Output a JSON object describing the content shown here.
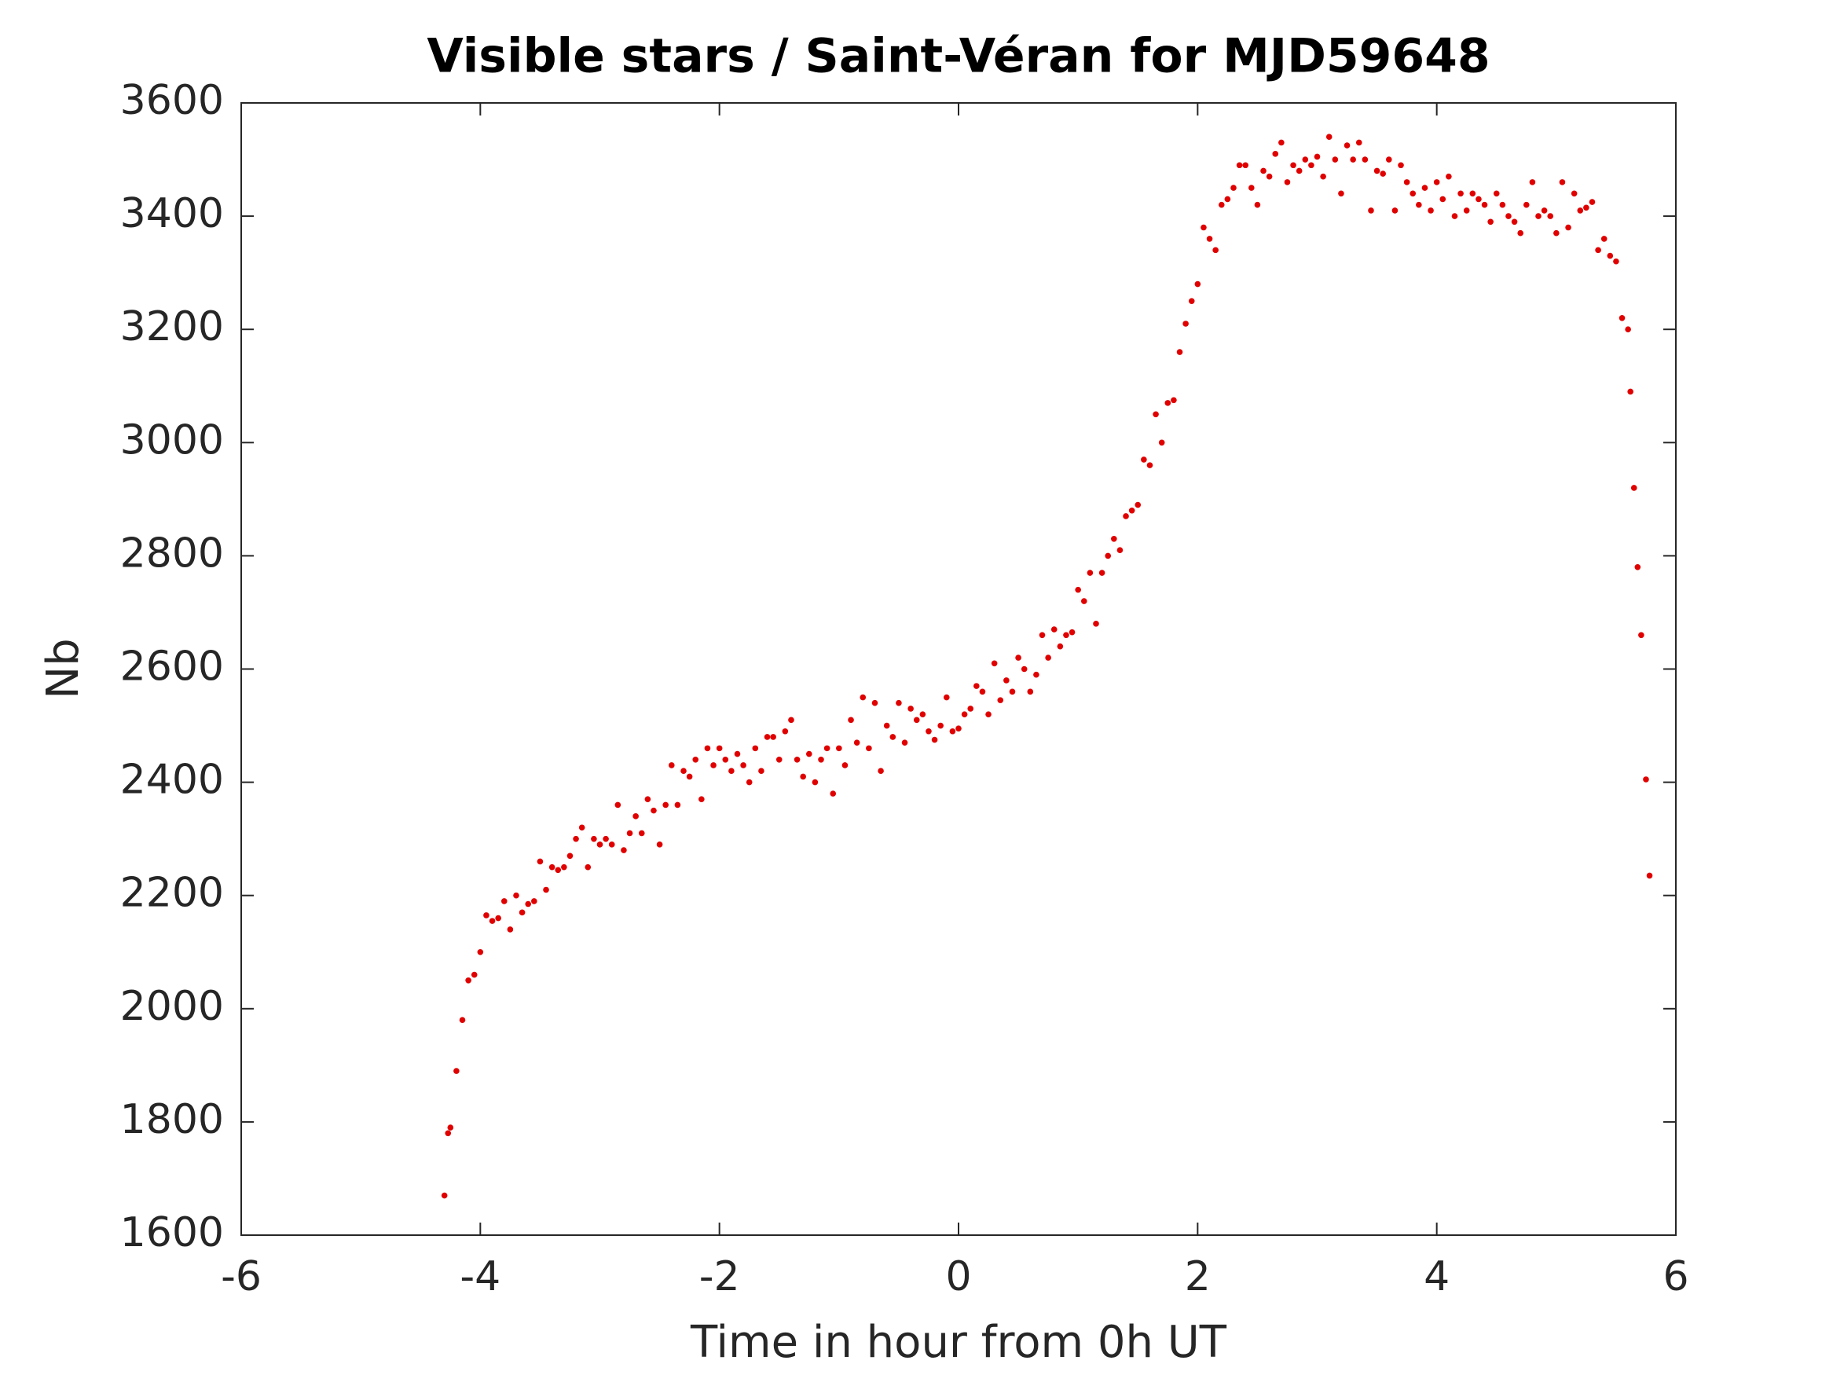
{
  "chart_data": {
    "type": "scatter",
    "title": "Visible stars / Saint-Véran for MJD59648",
    "x_label": "Time in hour from 0h UT",
    "y_label": "Nb",
    "color": "#e00000",
    "xlim": [
      -6,
      6
    ],
    "xticks": [
      -6,
      -4,
      -2,
      0,
      2,
      4,
      6
    ],
    "ylim": [
      1600,
      3600
    ],
    "yticks": [
      1600,
      1800,
      2000,
      2200,
      2400,
      2600,
      2800,
      3000,
      3200,
      3400,
      3600
    ],
    "x": [
      -4.3,
      -4.27,
      -4.25,
      -4.2,
      -4.15,
      -4.1,
      -4.05,
      -4.0,
      -3.95,
      -3.9,
      -3.85,
      -3.8,
      -3.75,
      -3.7,
      -3.65,
      -3.6,
      -3.55,
      -3.5,
      -3.45,
      -3.4,
      -3.35,
      -3.3,
      -3.25,
      -3.2,
      -3.15,
      -3.1,
      -3.05,
      -3.0,
      -2.95,
      -2.9,
      -2.85,
      -2.8,
      -2.75,
      -2.7,
      -2.65,
      -2.6,
      -2.55,
      -2.5,
      -2.45,
      -2.4,
      -2.35,
      -2.3,
      -2.25,
      -2.2,
      -2.15,
      -2.1,
      -2.05,
      -2.0,
      -1.95,
      -1.9,
      -1.85,
      -1.8,
      -1.75,
      -1.7,
      -1.65,
      -1.6,
      -1.55,
      -1.5,
      -1.45,
      -1.4,
      -1.35,
      -1.3,
      -1.25,
      -1.2,
      -1.15,
      -1.1,
      -1.05,
      -1.0,
      -0.95,
      -0.9,
      -0.85,
      -0.8,
      -0.75,
      -0.7,
      -0.65,
      -0.6,
      -0.55,
      -0.5,
      -0.45,
      -0.4,
      -0.35,
      -0.3,
      -0.25,
      -0.2,
      -0.15,
      -0.1,
      -0.05,
      0.0,
      0.05,
      0.1,
      0.15,
      0.2,
      0.25,
      0.3,
      0.35,
      0.4,
      0.45,
      0.5,
      0.55,
      0.6,
      0.65,
      0.7,
      0.75,
      0.8,
      0.85,
      0.9,
      0.95,
      1.0,
      1.05,
      1.1,
      1.15,
      1.2,
      1.25,
      1.3,
      1.35,
      1.4,
      1.45,
      1.5,
      1.55,
      1.6,
      1.65,
      1.7,
      1.75,
      1.8,
      1.85,
      1.9,
      1.95,
      2.0,
      2.05,
      2.1,
      2.15,
      2.2,
      2.25,
      2.3,
      2.35,
      2.4,
      2.45,
      2.5,
      2.55,
      2.6,
      2.65,
      2.7,
      2.75,
      2.8,
      2.85,
      2.9,
      2.95,
      3.0,
      3.05,
      3.1,
      3.15,
      3.2,
      3.25,
      3.3,
      3.35,
      3.4,
      3.45,
      3.5,
      3.55,
      3.6,
      3.65,
      3.7,
      3.75,
      3.8,
      3.85,
      3.9,
      3.95,
      4.0,
      4.05,
      4.1,
      4.15,
      4.2,
      4.25,
      4.3,
      4.35,
      4.4,
      4.45,
      4.5,
      4.55,
      4.6,
      4.65,
      4.7,
      4.75,
      4.8,
      4.85,
      4.9,
      4.95,
      5.0,
      5.05,
      5.1,
      5.15,
      5.2,
      5.25,
      5.3,
      5.35,
      5.4,
      5.45,
      5.5,
      5.55,
      5.6,
      5.62,
      5.65,
      5.68,
      5.71,
      5.75,
      5.78
    ],
    "values": [
      1670,
      1780,
      1790,
      1890,
      1980,
      2050,
      2060,
      2100,
      2165,
      2155,
      2160,
      2190,
      2140,
      2200,
      2170,
      2185,
      2190,
      2260,
      2210,
      2250,
      2245,
      2250,
      2270,
      2300,
      2320,
      2250,
      2300,
      2290,
      2300,
      2290,
      2360,
      2280,
      2310,
      2340,
      2310,
      2370,
      2350,
      2290,
      2360,
      2430,
      2360,
      2420,
      2410,
      2440,
      2370,
      2460,
      2430,
      2460,
      2440,
      2420,
      2450,
      2430,
      2400,
      2460,
      2420,
      2480,
      2480,
      2440,
      2490,
      2510,
      2440,
      2410,
      2450,
      2400,
      2440,
      2460,
      2380,
      2460,
      2430,
      2510,
      2470,
      2550,
      2460,
      2540,
      2420,
      2500,
      2480,
      2540,
      2470,
      2530,
      2510,
      2520,
      2490,
      2475,
      2500,
      2550,
      2490,
      2495,
      2520,
      2530,
      2570,
      2560,
      2520,
      2610,
      2545,
      2580,
      2560,
      2620,
      2600,
      2560,
      2590,
      2660,
      2620,
      2670,
      2640,
      2660,
      2665,
      2740,
      2720,
      2770,
      2680,
      2770,
      2800,
      2830,
      2810,
      2870,
      2880,
      2890,
      2970,
      2960,
      3050,
      3000,
      3070,
      3075,
      3160,
      3210,
      3250,
      3280,
      3380,
      3360,
      3340,
      3420,
      3430,
      3450,
      3490,
      3490,
      3450,
      3420,
      3480,
      3470,
      3510,
      3530,
      3460,
      3490,
      3480,
      3500,
      3490,
      3505,
      3470,
      3540,
      3500,
      3440,
      3525,
      3500,
      3530,
      3500,
      3410,
      3480,
      3475,
      3500,
      3410,
      3490,
      3460,
      3440,
      3420,
      3450,
      3410,
      3460,
      3430,
      3470,
      3400,
      3440,
      3410,
      3440,
      3430,
      3420,
      3390,
      3440,
      3420,
      3400,
      3390,
      3370,
      3420,
      3460,
      3400,
      3410,
      3400,
      3370,
      3460,
      3380,
      3440,
      3410,
      3415,
      3425,
      3340,
      3360,
      3330,
      3320,
      3220,
      3200,
      3090,
      2920,
      2780,
      2660,
      2405,
      2235
    ]
  }
}
